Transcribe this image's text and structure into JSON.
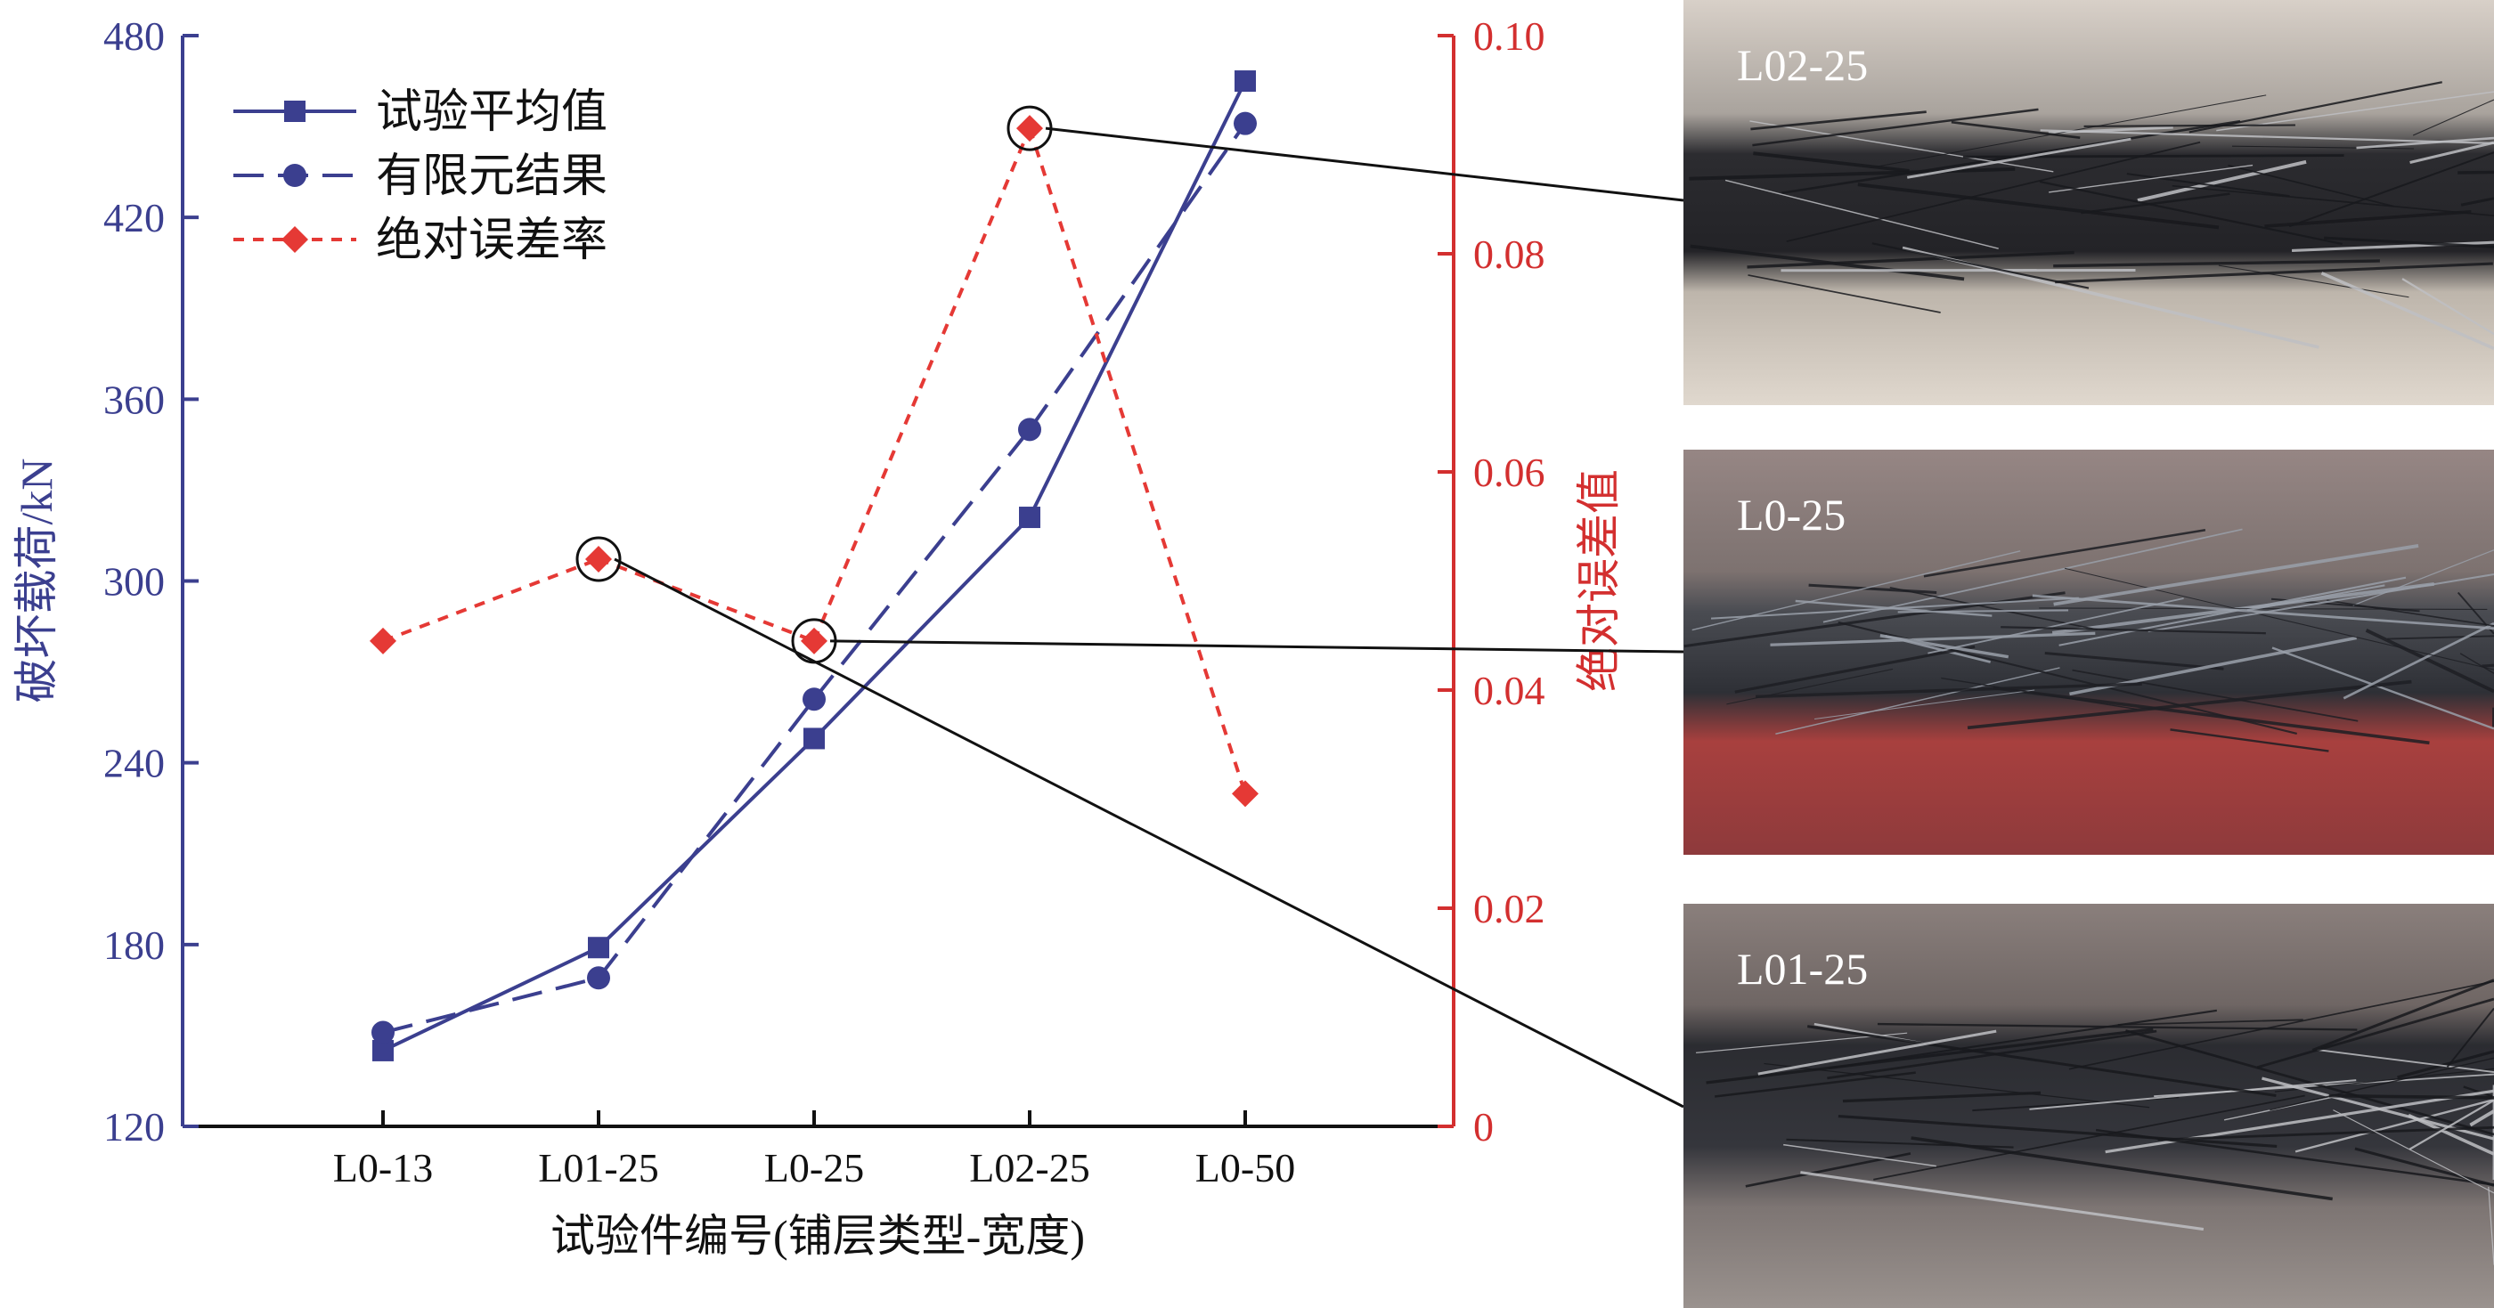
{
  "chart_data": {
    "type": "line",
    "xlabel": "试验件编号(铺层类型-宽度)",
    "categories": [
      "L0-13",
      "L01-25",
      "L0-25",
      "L02-25",
      "L0-50"
    ],
    "y_left": {
      "label": "破坏载荷/kN",
      "lim": [
        120,
        480
      ],
      "ticks": [
        "120",
        "180",
        "240",
        "300",
        "360",
        "420",
        "480"
      ]
    },
    "y_right": {
      "label": "绝对误差值",
      "lim": [
        0,
        0.1
      ],
      "ticks": [
        "0",
        "0.02",
        "0.04",
        "0.06",
        "0.08",
        "0.10"
      ]
    },
    "series": [
      {
        "name": "试验平均值",
        "axis": "left",
        "style": "solid",
        "marker": "square",
        "color": "#3b3f8f",
        "values": [
          145,
          179,
          248,
          321,
          465
        ]
      },
      {
        "name": "有限元结果",
        "axis": "left",
        "style": "dashed",
        "marker": "circle",
        "color": "#3b3f8f",
        "values": [
          151,
          169,
          261,
          350,
          451
        ]
      },
      {
        "name": "绝对误差率",
        "axis": "right",
        "style": "dotted",
        "marker": "diamond",
        "color": "#e53935",
        "values": [
          0.0445,
          0.052,
          0.0445,
          0.0915,
          0.0305
        ]
      }
    ],
    "legend_position": "top-left",
    "highlighted_points": [
      "L01-25",
      "L0-25",
      "L02-25"
    ]
  },
  "photos": [
    {
      "label": "L02-25",
      "color_top": "#c9bfb5",
      "color_mid": "#2a2a2e",
      "color_bottom": "#d7cfc5"
    },
    {
      "label": "L0-25",
      "color_top": "#8a7a78",
      "color_mid": "#3a3c42",
      "color_bottom": "#b03a3a"
    },
    {
      "label": "L01-25",
      "color_top": "#7e7472",
      "color_mid": "#2f3036",
      "color_bottom": "#8f8784"
    }
  ]
}
